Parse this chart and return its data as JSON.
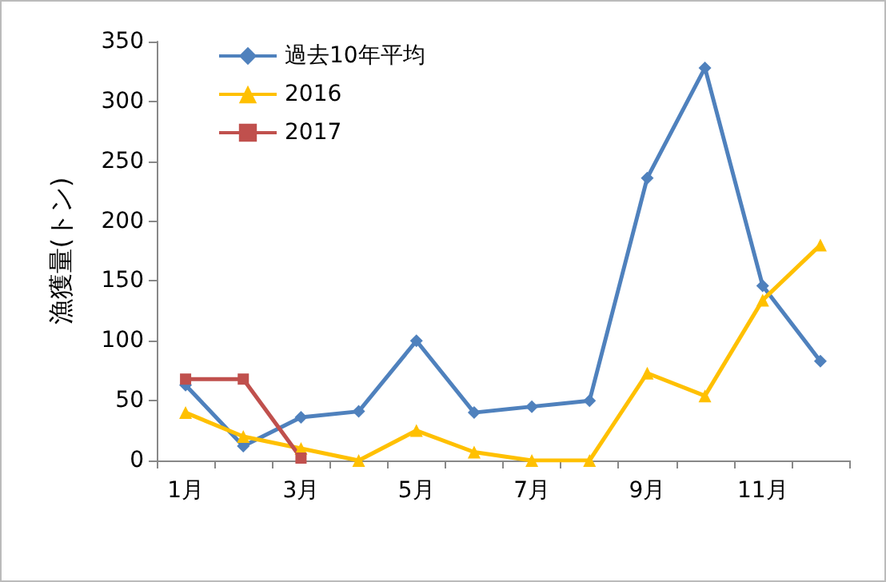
{
  "chart_data": {
    "type": "line",
    "ylabel": "漁獲量(トン)",
    "categories": [
      "1月",
      null,
      "3月",
      null,
      "5月",
      null,
      "7月",
      null,
      "9月",
      null,
      "11月",
      null
    ],
    "ylim": [
      0,
      350
    ],
    "yticks": [
      0,
      50,
      100,
      150,
      200,
      250,
      300,
      350
    ],
    "grid": false,
    "legend": "top left",
    "series": [
      {
        "name": "過去10年平均",
        "color": "#4f81bd",
        "marker": "diamond",
        "values": [
          63,
          12,
          36,
          41,
          100,
          40,
          45,
          50,
          236,
          328,
          146,
          83
        ]
      },
      {
        "name": "2016",
        "color": "#ffc000",
        "marker": "triangle",
        "values": [
          40,
          20,
          10,
          0,
          25,
          7,
          0,
          0,
          73,
          54,
          134,
          180
        ]
      },
      {
        "name": "2017",
        "color": "#c0504d",
        "marker": "square",
        "values": [
          68,
          68,
          2,
          null,
          null,
          null,
          null,
          null,
          null,
          null,
          null,
          null
        ]
      }
    ]
  }
}
